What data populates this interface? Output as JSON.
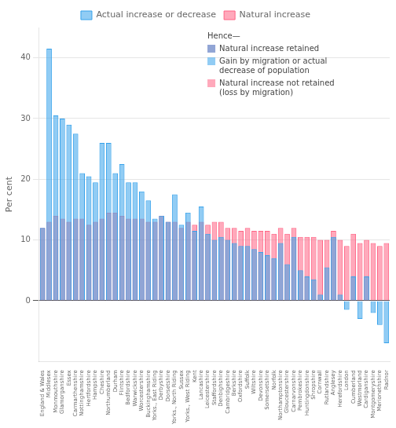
{
  "chart_data": {
    "type": "bar",
    "ylabel": "Per cent",
    "categories": [
      "England & Wales",
      "Middlesex",
      "Monmouthshire",
      "Glamorganshire",
      "Essex",
      "Carmarthenshire",
      "Nottinghamshire",
      "Hertfordshire",
      "Hampshire",
      "Cheshire",
      "Northumberland",
      "Durham",
      "Flintshire",
      "Bedfordshire",
      "Warwickshire",
      "Worcestershire",
      "Buckinghamshire",
      "Yorks., East Riding",
      "Derbyshire",
      "Dorsetshire",
      "Yorks., North Riding",
      "Sussex",
      "Yorks., West Riding",
      "Kent",
      "Lancashire",
      "Leicestershire",
      "Staffordshire",
      "Denbighshire",
      "Cambridgeshire",
      "Berkshire",
      "Oxfordshire",
      "Suffolk",
      "Wiltshire",
      "Devonshire",
      "Somersetshire",
      "Norfolk",
      "Northamptonshire",
      "Gloucestershire",
      "Carnarvonshire",
      "Pembrokeshire",
      "Huntingdonshire",
      "Shropshire",
      "Cornwall",
      "Rutlandshire",
      "Anglesey",
      "Herefordshire",
      "London",
      "Cumberland",
      "Westmorland",
      "Cardiganshire",
      "Montgomeryshire",
      "Merionethshire",
      "Radnor"
    ],
    "series": [
      {
        "name": "Actual increase or decrease",
        "color": "#36a2eb",
        "values": [
          12.0,
          41.5,
          30.5,
          30.0,
          29.0,
          27.5,
          21.0,
          20.5,
          19.5,
          26.0,
          26.0,
          21.0,
          22.5,
          19.5,
          19.5,
          18.0,
          16.5,
          13.5,
          14.0,
          13.0,
          17.5,
          12.5,
          14.5,
          11.5,
          15.5,
          11.0,
          10.0,
          10.5,
          10.0,
          9.5,
          9.0,
          9.0,
          8.5,
          8.0,
          7.5,
          7.0,
          9.5,
          6.0,
          10.5,
          5.0,
          4.0,
          3.5,
          1.0,
          5.5,
          10.5,
          1.0,
          -1.5,
          4.0,
          -3.0,
          4.0,
          -2.0,
          -4.0,
          -7.0
        ]
      },
      {
        "name": "Natural increase",
        "color": "#ff6384",
        "values": [
          12.0,
          13.0,
          14.0,
          13.5,
          13.0,
          13.5,
          13.5,
          12.5,
          13.0,
          13.5,
          14.5,
          14.5,
          14.0,
          13.5,
          13.5,
          13.5,
          13.0,
          13.0,
          14.0,
          13.0,
          13.0,
          12.0,
          13.0,
          12.5,
          13.0,
          12.5,
          13.0,
          13.0,
          12.0,
          12.0,
          11.5,
          12.0,
          11.5,
          11.5,
          11.5,
          11.0,
          12.0,
          11.0,
          12.0,
          10.5,
          10.5,
          10.5,
          10.0,
          10.0,
          11.5,
          10.0,
          9.0,
          11.0,
          9.5,
          10.0,
          9.5,
          9.0,
          9.5
        ]
      }
    ],
    "annotations": [
      "Hence—",
      "Natural increase retained",
      "Gain by migration or actual\ndecrease of population",
      "Natural increase not retained\n(loss by migration)"
    ],
    "ylim": [
      -10,
      45
    ],
    "yticks": [
      0,
      10,
      20,
      30,
      40
    ],
    "grid": true,
    "legend": "top"
  }
}
